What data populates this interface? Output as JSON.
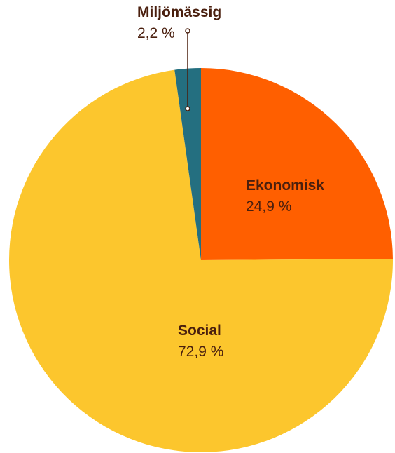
{
  "chart_data": {
    "type": "pie",
    "title": "",
    "start_angle_deg": 0,
    "direction": "clockwise",
    "slices": [
      {
        "label": "Ekonomisk",
        "value": 24.9,
        "display": "24,9 %",
        "color": "#ff5f00"
      },
      {
        "label": "Social",
        "value": 72.9,
        "display": "72,9 %",
        "color": "#fcc62d"
      },
      {
        "label": "Miljömässig",
        "value": 2.2,
        "display": "2,2 %",
        "color": "#246f80"
      }
    ],
    "label_color": "#4a1f0e",
    "legend": "none"
  }
}
